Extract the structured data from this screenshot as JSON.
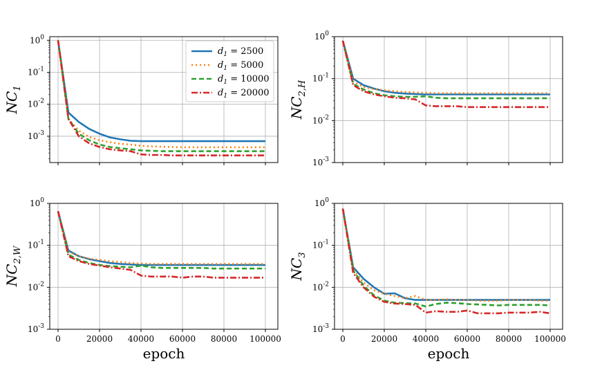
{
  "chart_data": {
    "type": "line",
    "x_label": "epoch",
    "x_ticks": [
      0,
      20000,
      40000,
      60000,
      80000,
      100000
    ],
    "y_scale": "log",
    "y_ticks": [
      "10^{-3}",
      "10^{-2}",
      "10^{-1}",
      "10^{0}"
    ],
    "legend": [
      "d_1 = 2500",
      "d_1 = 5000",
      "d_1 = 10000",
      "d_1 = 20000"
    ],
    "series_colors": [
      "#1f77b4",
      "#ff7f0e",
      "#2ca02c",
      "#d62728"
    ],
    "series_styles": [
      "solid",
      "dotted",
      "dashed",
      "dashdot"
    ],
    "x": [
      0,
      5000,
      10000,
      15000,
      20000,
      25000,
      30000,
      35000,
      40000,
      45000,
      50000,
      55000,
      60000,
      65000,
      70000,
      75000,
      80000,
      85000,
      90000,
      95000,
      100000
    ],
    "panels": [
      {
        "ylabel": "NC_1",
        "ylim": [
          0.00015,
          1.3
        ],
        "legend_placement": "upper right",
        "series": [
          {
            "name": "d_1 = 2500",
            "values": [
              1.0,
              0.0055,
              0.0028,
              0.0017,
              0.0012,
              0.00092,
              0.0008,
              0.00072,
              0.0007,
              0.0007,
              0.0007,
              0.0007,
              0.0007,
              0.0007,
              0.0007,
              0.0007,
              0.0007,
              0.0007,
              0.0007,
              0.0007,
              0.0007
            ]
          },
          {
            "name": "d_1 = 5000",
            "values": [
              1.0,
              0.0035,
              0.0015,
              0.00095,
              0.00075,
              0.00065,
              0.00058,
              0.00055,
              0.0005,
              0.00048,
              0.00047,
              0.00046,
              0.00045,
              0.00045,
              0.00045,
              0.00045,
              0.00045,
              0.00045,
              0.00045,
              0.00045,
              0.00045
            ]
          },
          {
            "name": "d_1 = 10000",
            "values": [
              1.0,
              0.0035,
              0.0012,
              0.00075,
              0.00055,
              0.00046,
              0.00042,
              0.00039,
              0.00036,
              0.00035,
              0.00034,
              0.00034,
              0.00034,
              0.00034,
              0.00034,
              0.00034,
              0.00034,
              0.00034,
              0.00034,
              0.00034,
              0.00034
            ]
          },
          {
            "name": "d_1 = 20000",
            "values": [
              1.0,
              0.0035,
              0.001,
              0.0006,
              0.00046,
              0.00039,
              0.00036,
              0.00034,
              0.00027,
              0.00026,
              0.00026,
              0.00025,
              0.00025,
              0.00025,
              0.00025,
              0.00025,
              0.00025,
              0.00025,
              0.00025,
              0.00025,
              0.00025
            ]
          }
        ]
      },
      {
        "ylabel": "NC_{2,H}",
        "ylim": [
          0.001,
          1.0
        ],
        "series": [
          {
            "name": "d_1 = 2500",
            "values": [
              0.8,
              0.1,
              0.07,
              0.058,
              0.05,
              0.046,
              0.044,
              0.043,
              0.042,
              0.042,
              0.042,
              0.042,
              0.042,
              0.042,
              0.042,
              0.042,
              0.042,
              0.042,
              0.042,
              0.042,
              0.042
            ]
          },
          {
            "name": "d_1 = 5000",
            "values": [
              0.8,
              0.085,
              0.063,
              0.056,
              0.053,
              0.05,
              0.048,
              0.047,
              0.046,
              0.045,
              0.045,
              0.045,
              0.045,
              0.045,
              0.045,
              0.045,
              0.045,
              0.045,
              0.045,
              0.045,
              0.045
            ]
          },
          {
            "name": "d_1 = 10000",
            "values": [
              0.8,
              0.075,
              0.055,
              0.045,
              0.04,
              0.038,
              0.037,
              0.037,
              0.038,
              0.035,
              0.034,
              0.034,
              0.034,
              0.034,
              0.034,
              0.034,
              0.034,
              0.034,
              0.034,
              0.034,
              0.034
            ]
          },
          {
            "name": "d_1 = 20000",
            "values": [
              0.8,
              0.07,
              0.05,
              0.042,
              0.038,
              0.035,
              0.034,
              0.032,
              0.023,
              0.022,
              0.022,
              0.022,
              0.021,
              0.021,
              0.021,
              0.021,
              0.021,
              0.021,
              0.021,
              0.021,
              0.021
            ]
          }
        ]
      },
      {
        "ylabel": "NC_{2,W}",
        "ylim": [
          0.001,
          1.0
        ],
        "series": [
          {
            "name": "d_1 = 2500",
            "values": [
              0.65,
              0.075,
              0.055,
              0.047,
              0.042,
              0.038,
              0.036,
              0.035,
              0.034,
              0.034,
              0.034,
              0.034,
              0.034,
              0.034,
              0.034,
              0.034,
              0.034,
              0.034,
              0.034,
              0.034,
              0.034
            ]
          },
          {
            "name": "d_1 = 5000",
            "values": [
              0.65,
              0.07,
              0.055,
              0.048,
              0.045,
              0.042,
              0.04,
              0.038,
              0.037,
              0.036,
              0.036,
              0.036,
              0.036,
              0.036,
              0.036,
              0.036,
              0.036,
              0.036,
              0.036,
              0.036,
              0.036
            ]
          },
          {
            "name": "d_1 = 10000",
            "values": [
              0.65,
              0.06,
              0.045,
              0.038,
              0.034,
              0.032,
              0.031,
              0.03,
              0.033,
              0.03,
              0.029,
              0.029,
              0.029,
              0.029,
              0.029,
              0.028,
              0.028,
              0.028,
              0.028,
              0.028,
              0.028
            ]
          },
          {
            "name": "d_1 = 20000",
            "values": [
              0.65,
              0.055,
              0.042,
              0.036,
              0.033,
              0.03,
              0.028,
              0.026,
              0.019,
              0.018,
              0.018,
              0.018,
              0.017,
              0.018,
              0.018,
              0.017,
              0.017,
              0.017,
              0.017,
              0.017,
              0.017
            ]
          }
        ]
      },
      {
        "ylabel": "NC_3",
        "ylim": [
          0.001,
          1.0
        ],
        "series": [
          {
            "name": "d_1 = 2500",
            "values": [
              0.75,
              0.03,
              0.016,
              0.01,
              0.007,
              0.0072,
              0.0055,
              0.005,
              0.005,
              0.005,
              0.005,
              0.005,
              0.005,
              0.005,
              0.005,
              0.005,
              0.005,
              0.005,
              0.005,
              0.005,
              0.005
            ]
          },
          {
            "name": "d_1 = 5000",
            "values": [
              0.75,
              0.027,
              0.013,
              0.0085,
              0.007,
              0.0062,
              0.0055,
              0.0062,
              0.005,
              0.005,
              0.0052,
              0.005,
              0.005,
              0.0048,
              0.0048,
              0.0048,
              0.005,
              0.005,
              0.005,
              0.0048,
              0.0048
            ]
          },
          {
            "name": "d_1 = 10000",
            "values": [
              0.75,
              0.025,
              0.011,
              0.0065,
              0.0048,
              0.0043,
              0.0042,
              0.0041,
              0.0035,
              0.004,
              0.0043,
              0.0042,
              0.004,
              0.0039,
              0.0038,
              0.0037,
              0.0038,
              0.0038,
              0.0038,
              0.0038,
              0.0037
            ]
          },
          {
            "name": "d_1 = 20000",
            "values": [
              0.75,
              0.022,
              0.01,
              0.006,
              0.0045,
              0.0041,
              0.004,
              0.0038,
              0.0025,
              0.0027,
              0.0026,
              0.0026,
              0.0028,
              0.0024,
              0.0024,
              0.0024,
              0.0025,
              0.0025,
              0.0025,
              0.0026,
              0.0024
            ]
          }
        ]
      }
    ]
  }
}
